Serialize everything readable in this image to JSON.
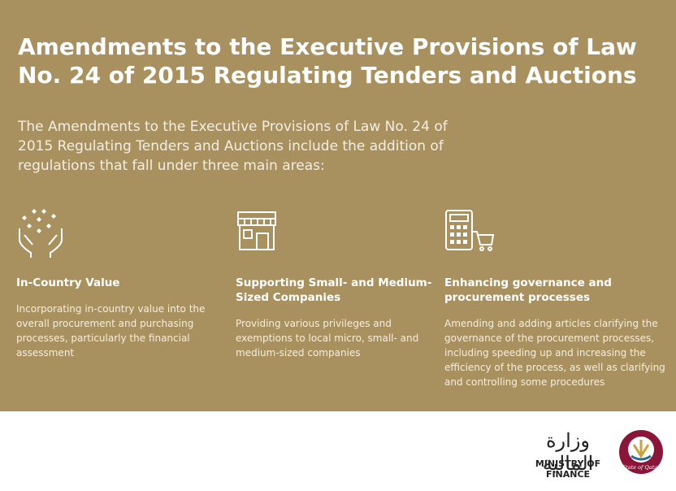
{
  "header": {
    "title": "Amendments to the Executive Provisions of Law No. 24 of 2015 Regulating Tenders and Auctions",
    "intro": "The Amendments to the Executive Provisions of Law No. 24 of 2015 Regulating Tenders and Auctions include the addition of regulations that fall under three main areas:"
  },
  "areas": [
    {
      "heading": "In-Country Value",
      "text": "Incorporating in-country value into the overall procurement and purchasing processes, particularly the financial assessment"
    },
    {
      "heading": "Supporting Small- and Medium-Sized Companies",
      "text": "Providing various privileges and exemptions to local micro, small- and medium-sized companies"
    },
    {
      "heading": "Enhancing governance and procurement processes",
      "text": "Amending and adding articles clarifying the governance of the procurement processes, including speeding up and increasing the efficiency of the process, as well as clarifying and controlling some procedures"
    }
  ],
  "footer": {
    "ministry_arabic": "وزارة المالية",
    "ministry": "MINISTRY OF FINANCE",
    "emblem_text": "State of Qatar"
  }
}
